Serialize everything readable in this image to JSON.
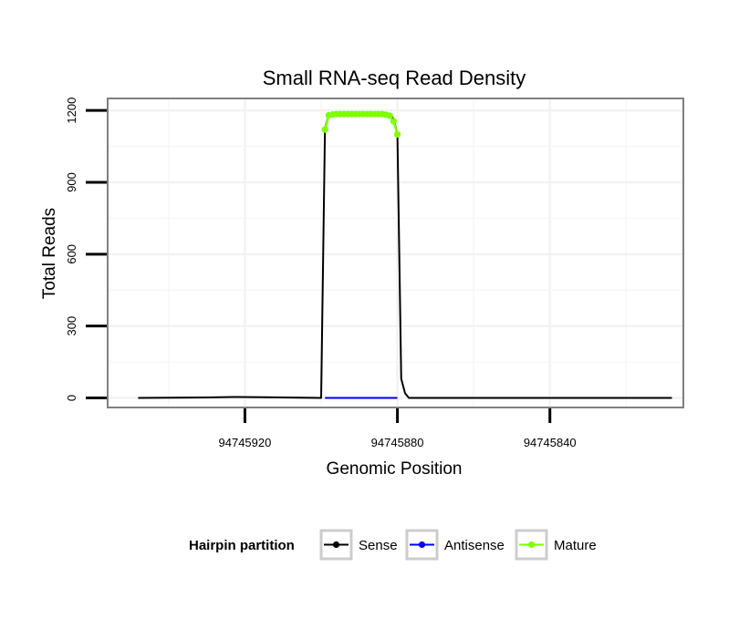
{
  "chart_data": {
    "type": "line",
    "title": "Small RNA-seq Read Density",
    "xlabel": "Genomic Position",
    "ylabel": "Total Reads",
    "x_reversed": true,
    "xlim": [
      94745956,
      94745805
    ],
    "ylim": [
      -40,
      1250
    ],
    "x_ticks": [
      94745920,
      94745880,
      94745840
    ],
    "x_tick_labels": [
      "94745920",
      "94745880",
      "94745840"
    ],
    "y_ticks": [
      0,
      300,
      600,
      900,
      1200
    ],
    "y_tick_labels": [
      "0",
      "300",
      "600",
      "900",
      "1200"
    ],
    "legend": {
      "title": "Hairpin partition",
      "position": "bottom",
      "entries": [
        {
          "label": "Sense",
          "color": "#000000"
        },
        {
          "label": "Antisense",
          "color": "#0000ff"
        },
        {
          "label": "Mature",
          "color": "#7fff00"
        }
      ]
    },
    "series": [
      {
        "name": "Sense",
        "color": "#000000",
        "points": [
          [
            94745948,
            0
          ],
          [
            94745930,
            2
          ],
          [
            94745922,
            4
          ],
          [
            94745915,
            3
          ],
          [
            94745905,
            1
          ],
          [
            94745900,
            0
          ],
          [
            94745899,
            1125
          ],
          [
            94745898,
            1185
          ],
          [
            94745896,
            1190
          ],
          [
            94745892,
            1190
          ],
          [
            94745888,
            1190
          ],
          [
            94745884,
            1190
          ],
          [
            94745882,
            1185
          ],
          [
            94745881,
            1165
          ],
          [
            94745880,
            1100
          ],
          [
            94745879,
            80
          ],
          [
            94745878,
            20
          ],
          [
            94745877,
            0
          ],
          [
            94745860,
            0
          ],
          [
            94745820,
            0
          ],
          [
            94745808,
            0
          ]
        ]
      },
      {
        "name": "Antisense",
        "color": "#0000ff",
        "points": [
          [
            94745899,
            0
          ],
          [
            94745880,
            0
          ]
        ]
      },
      {
        "name": "Mature",
        "color": "#7fff00",
        "points": [
          [
            94745899,
            1120
          ],
          [
            94745898,
            1180
          ],
          [
            94745897,
            1183
          ],
          [
            94745896,
            1185
          ],
          [
            94745895,
            1185
          ],
          [
            94745894,
            1185
          ],
          [
            94745893,
            1185
          ],
          [
            94745892,
            1185
          ],
          [
            94745891,
            1185
          ],
          [
            94745890,
            1185
          ],
          [
            94745889,
            1185
          ],
          [
            94745888,
            1185
          ],
          [
            94745887,
            1185
          ],
          [
            94745886,
            1185
          ],
          [
            94745885,
            1185
          ],
          [
            94745884,
            1185
          ],
          [
            94745883,
            1182
          ],
          [
            94745882,
            1178
          ],
          [
            94745881,
            1155
          ],
          [
            94745880,
            1100
          ]
        ]
      }
    ]
  }
}
